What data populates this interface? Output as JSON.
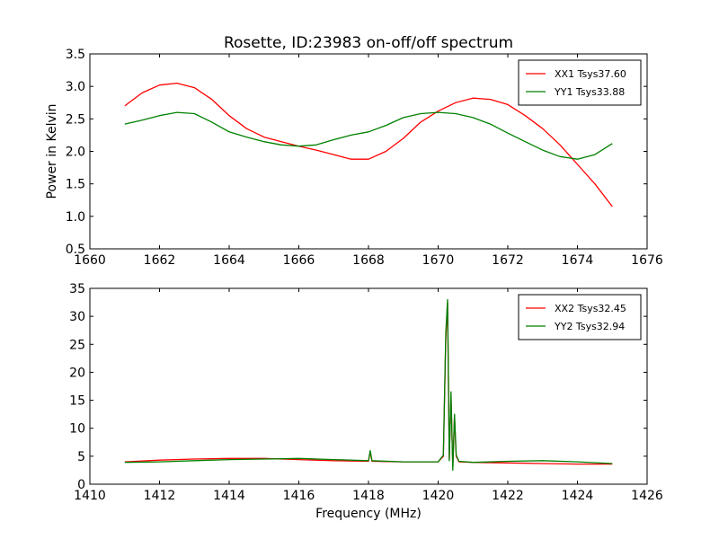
{
  "figure": {
    "title": "Rosette, ID:23983 on-off/off spectrum"
  },
  "chart_data": [
    {
      "type": "line",
      "title": "Rosette, ID:23983 on-off/off spectrum",
      "xlabel": "",
      "ylabel": "Power in Kelvin",
      "xlim": [
        1660,
        1676
      ],
      "ylim": [
        0.5,
        3.5
      ],
      "xticks": [
        "1660",
        "1662",
        "1664",
        "1666",
        "1668",
        "1670",
        "1672",
        "1674",
        "1676"
      ],
      "yticks": [
        "0.5",
        "1.0",
        "1.5",
        "2.0",
        "2.5",
        "3.0",
        "3.5"
      ],
      "legend_position": "top-right",
      "series": [
        {
          "name": "XX1 Tsys37.60",
          "color": "#ff0000",
          "x": [
            1661.0,
            1661.5,
            1662.0,
            1662.5,
            1663.0,
            1663.5,
            1664.0,
            1664.5,
            1665.0,
            1665.5,
            1666.0,
            1666.5,
            1667.0,
            1667.5,
            1668.0,
            1668.5,
            1669.0,
            1669.5,
            1670.0,
            1670.5,
            1671.0,
            1671.5,
            1672.0,
            1672.5,
            1673.0,
            1673.5,
            1674.0,
            1674.5,
            1675.0
          ],
          "values": [
            2.7,
            2.9,
            3.02,
            3.05,
            2.98,
            2.8,
            2.55,
            2.35,
            2.22,
            2.15,
            2.08,
            2.02,
            1.95,
            1.88,
            1.88,
            2.0,
            2.2,
            2.45,
            2.62,
            2.75,
            2.82,
            2.8,
            2.72,
            2.55,
            2.35,
            2.1,
            1.8,
            1.5,
            1.15
          ]
        },
        {
          "name": "YY1 Tsys33.88",
          "color": "#008000",
          "x": [
            1661.0,
            1661.5,
            1662.0,
            1662.5,
            1663.0,
            1663.5,
            1664.0,
            1664.5,
            1665.0,
            1665.5,
            1666.0,
            1666.5,
            1667.0,
            1667.5,
            1668.0,
            1668.5,
            1669.0,
            1669.5,
            1670.0,
            1670.5,
            1671.0,
            1671.5,
            1672.0,
            1672.5,
            1673.0,
            1673.5,
            1674.0,
            1674.5,
            1675.0
          ],
          "values": [
            2.42,
            2.48,
            2.55,
            2.6,
            2.58,
            2.45,
            2.3,
            2.22,
            2.15,
            2.1,
            2.08,
            2.1,
            2.18,
            2.25,
            2.3,
            2.4,
            2.52,
            2.58,
            2.6,
            2.58,
            2.52,
            2.42,
            2.28,
            2.15,
            2.02,
            1.92,
            1.88,
            1.95,
            2.12
          ]
        }
      ]
    },
    {
      "type": "line",
      "title": "",
      "xlabel": "Frequency (MHz)",
      "ylabel": "",
      "xlim": [
        1410,
        1426
      ],
      "ylim": [
        0,
        35
      ],
      "xticks": [
        "1410",
        "1412",
        "1414",
        "1416",
        "1418",
        "1420",
        "1422",
        "1424",
        "1426"
      ],
      "yticks": [
        "0",
        "5",
        "10",
        "15",
        "20",
        "25",
        "30",
        "35"
      ],
      "legend_position": "top-right",
      "series": [
        {
          "name": "XX2 Tsys32.45",
          "color": "#ff0000",
          "x": [
            1411.0,
            1412.0,
            1413.0,
            1414.0,
            1415.0,
            1416.0,
            1417.0,
            1418.0,
            1418.05,
            1418.1,
            1419.0,
            1420.0,
            1420.15,
            1420.22,
            1420.27,
            1420.32,
            1420.37,
            1420.42,
            1420.47,
            1420.52,
            1420.6,
            1421.0,
            1422.0,
            1423.0,
            1424.0,
            1425.0
          ],
          "values": [
            4.0,
            4.3,
            4.5,
            4.6,
            4.6,
            4.4,
            4.2,
            4.1,
            5.8,
            4.1,
            4.0,
            4.0,
            5.0,
            26.0,
            32.5,
            4.5,
            16.0,
            3.0,
            12.0,
            5.0,
            4.0,
            3.9,
            3.8,
            3.7,
            3.6,
            3.6
          ]
        },
        {
          "name": "YY2 Tsys32.94",
          "color": "#008000",
          "x": [
            1411.0,
            1412.0,
            1413.0,
            1414.0,
            1415.0,
            1416.0,
            1417.0,
            1418.0,
            1418.05,
            1418.1,
            1419.0,
            1420.0,
            1420.15,
            1420.22,
            1420.27,
            1420.32,
            1420.37,
            1420.42,
            1420.47,
            1420.52,
            1420.6,
            1421.0,
            1422.0,
            1423.0,
            1424.0,
            1425.0
          ],
          "values": [
            3.9,
            4.0,
            4.2,
            4.4,
            4.5,
            4.6,
            4.4,
            4.2,
            6.0,
            4.2,
            4.0,
            4.0,
            5.2,
            27.0,
            33.0,
            4.2,
            16.5,
            2.5,
            12.5,
            5.2,
            4.1,
            3.9,
            4.1,
            4.2,
            4.0,
            3.7
          ]
        }
      ]
    }
  ]
}
